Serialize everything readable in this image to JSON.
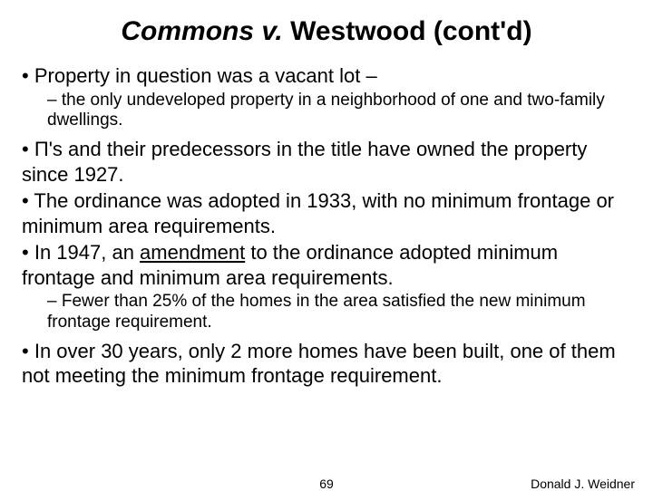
{
  "title": {
    "italic": "Commons v.",
    "rest": " Westwood (cont'd)"
  },
  "bullets": {
    "l1a": "Property in question was a vacant lot –",
    "l2a": "the only undeveloped property in a neighborhood of one and two-family dwellings.",
    "l1b": "Π's and their predecessors in the title have owned the property since 1927.",
    "l1c": "The ordinance was adopted in 1933, with no minimum frontage or minimum area requirements.",
    "l1d_pre": "In 1947, an ",
    "l1d_underline": "amendment",
    "l1d_post": " to the ordinance adopted minimum frontage and minimum area requirements.",
    "l2b": "Fewer than 25% of the homes in the area satisfied the new minimum frontage requirement.",
    "l1e": "In over 30 years, only 2 more homes have been built, one of them not meeting the minimum frontage requirement."
  },
  "footer": {
    "page": "69",
    "author": "Donald J. Weidner"
  }
}
